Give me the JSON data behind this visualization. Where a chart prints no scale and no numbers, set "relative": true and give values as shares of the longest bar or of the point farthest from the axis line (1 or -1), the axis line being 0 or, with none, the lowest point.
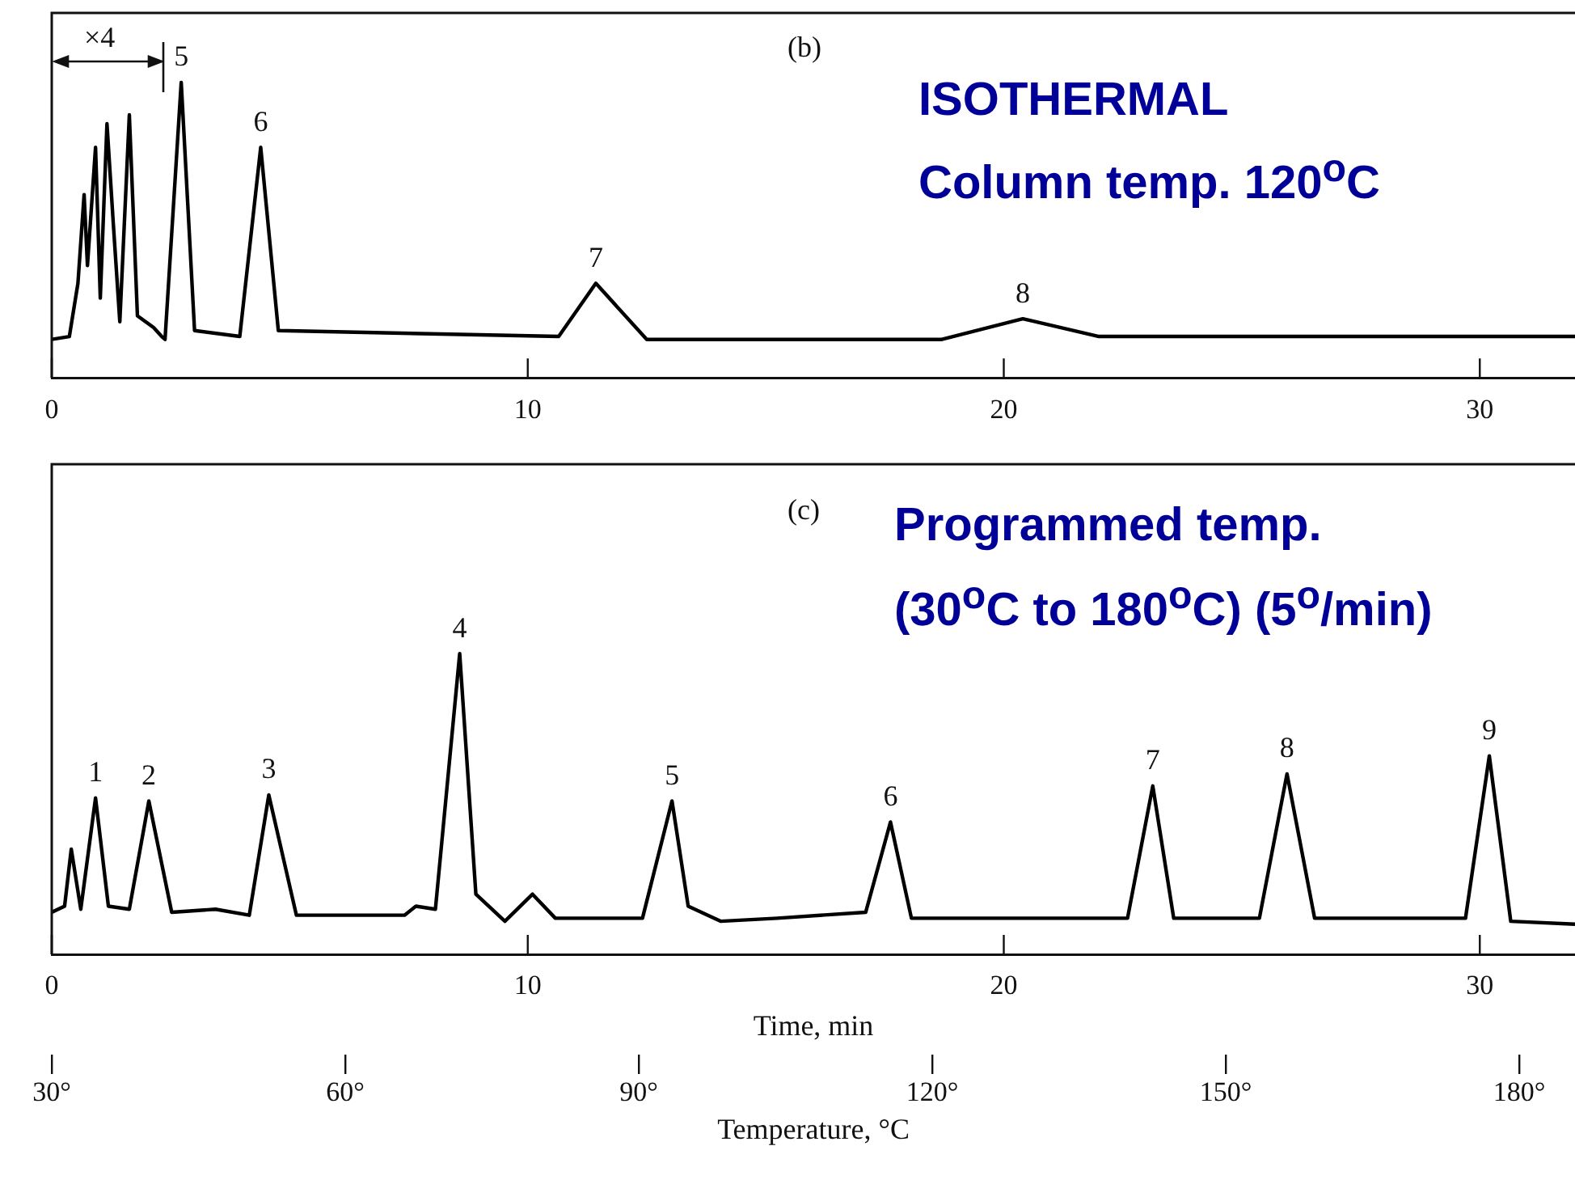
{
  "chart_data": [
    {
      "type": "line",
      "relative": true,
      "color": "#000000",
      "x": [
        0,
        0.37,
        0.55,
        0.68,
        0.75,
        0.92,
        1.02,
        1.16,
        1.29,
        1.43,
        1.63,
        1.8,
        2.14,
        2.31,
        2.38,
        2.72,
        3.0,
        3.95,
        4.39,
        4.76,
        10.65,
        11.43,
        12.5,
        18.7,
        20.4,
        22.0,
        32.0
      ],
      "values": [
        0.13,
        0.14,
        0.32,
        0.62,
        0.38,
        0.78,
        0.27,
        0.86,
        0.53,
        0.19,
        0.89,
        0.21,
        0.17,
        0.14,
        0.13,
        1.0,
        0.16,
        0.14,
        0.78,
        0.16,
        0.14,
        0.32,
        0.13,
        0.13,
        0.2,
        0.14,
        0.14
      ],
      "xlim": [
        0,
        32
      ],
      "xticks": [
        0,
        10,
        20,
        30
      ],
      "annotations": [
        "×4",
        "(b)",
        "ISOTHERMAL",
        "Column temp. 120$^{o}$C",
        {
          "text": "5",
          "x": 2.72,
          "y": 1.0
        },
        {
          "text": "6",
          "x": 4.39,
          "y": 0.78
        },
        {
          "text": "7",
          "x": 11.43,
          "y": 0.32
        },
        {
          "text": "8",
          "x": 20.4,
          "y": 0.2
        }
      ]
    },
    {
      "type": "line",
      "relative": true,
      "color": "#000000",
      "x": [
        0,
        0.27,
        0.41,
        0.61,
        0.92,
        1.19,
        1.63,
        2.04,
        2.52,
        3.44,
        4.15,
        4.56,
        5.14,
        7.41,
        7.65,
        8.06,
        8.57,
        8.91,
        9.52,
        10.1,
        10.58,
        12.41,
        13.03,
        13.37,
        14.05,
        15.24,
        17.1,
        17.62,
        18.06,
        22.6,
        23.13,
        23.57,
        25.37,
        25.95,
        26.53,
        29.7,
        30.2,
        30.65,
        32.0
      ],
      "values": [
        0.14,
        0.16,
        0.35,
        0.15,
        0.52,
        0.16,
        0.15,
        0.51,
        0.14,
        0.15,
        0.13,
        0.53,
        0.13,
        0.13,
        0.16,
        0.15,
        1.0,
        0.2,
        0.11,
        0.2,
        0.12,
        0.12,
        0.51,
        0.16,
        0.11,
        0.12,
        0.14,
        0.44,
        0.12,
        0.12,
        0.56,
        0.12,
        0.12,
        0.6,
        0.12,
        0.12,
        0.66,
        0.11,
        0.1
      ],
      "xlim": [
        0,
        32
      ],
      "xticks": [
        0,
        10,
        20,
        30
      ],
      "xlabel": "Time, min",
      "x2lim": [
        30,
        185.7
      ],
      "x2ticks": [
        {
          "value": 30,
          "label": "30°"
        },
        {
          "value": 60,
          "label": "60°"
        },
        {
          "value": 90,
          "label": "90°"
        },
        {
          "value": 120,
          "label": "120°"
        },
        {
          "value": 150,
          "label": "150°"
        },
        {
          "value": 180,
          "label": "180°"
        }
      ],
      "x2label": "Temperature, °C",
      "annotations": [
        "(c)",
        "Programmed temp.",
        "(30$^{o}$C to 180$^{o}$C) (5$^{o}$/min)",
        {
          "text": "1",
          "x": 0.92,
          "y": 0.52
        },
        {
          "text": "2",
          "x": 2.04,
          "y": 0.51
        },
        {
          "text": "3",
          "x": 4.56,
          "y": 0.53
        },
        {
          "text": "4",
          "x": 8.57,
          "y": 1.0
        },
        {
          "text": "5",
          "x": 13.03,
          "y": 0.51
        },
        {
          "text": "6",
          "x": 17.62,
          "y": 0.44
        },
        {
          "text": "7",
          "x": 23.13,
          "y": 0.56
        },
        {
          "text": "8",
          "x": 25.95,
          "y": 0.6
        },
        {
          "text": "9",
          "x": 30.2,
          "y": 0.66
        }
      ]
    }
  ]
}
